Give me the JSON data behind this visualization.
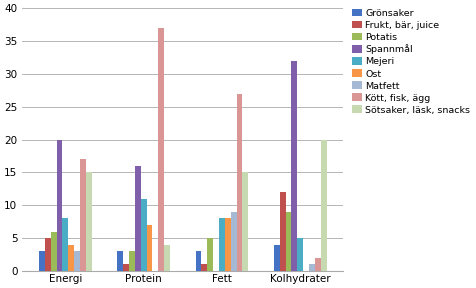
{
  "categories": [
    "Energi",
    "Protein",
    "Fett",
    "Kolhydrater"
  ],
  "series": [
    {
      "name": "Grönsaker",
      "color": "#4472c4",
      "values": [
        3,
        3,
        3,
        4
      ]
    },
    {
      "name": "Frukt, bär, juice",
      "color": "#c0504d",
      "values": [
        5,
        1,
        1,
        12
      ]
    },
    {
      "name": "Potatis",
      "color": "#9bbb59",
      "values": [
        6,
        3,
        5,
        9
      ]
    },
    {
      "name": "Spannmål",
      "color": "#7f5fa9",
      "values": [
        20,
        16,
        0,
        32
      ]
    },
    {
      "name": "Mejeri",
      "color": "#4bacc6",
      "values": [
        8,
        11,
        8,
        5
      ]
    },
    {
      "name": "Ost",
      "color": "#f79646",
      "values": [
        4,
        7,
        8,
        0
      ]
    },
    {
      "name": "Matfett",
      "color": "#a5b8d4",
      "values": [
        3,
        0,
        9,
        1
      ]
    },
    {
      "name": "Kött, fisk, ägg",
      "color": "#d99694",
      "values": [
        17,
        37,
        27,
        2
      ]
    },
    {
      "name": "Sötsaker, läsk, snacks",
      "color": "#c6d9b0",
      "values": [
        15,
        4,
        15,
        20
      ]
    }
  ],
  "ylim": [
    0,
    40
  ],
  "yticks": [
    0,
    5,
    10,
    15,
    20,
    25,
    30,
    35,
    40
  ],
  "background_color": "#ffffff",
  "grid_color": "#aaaaaa",
  "figsize": [
    4.76,
    2.88
  ],
  "dpi": 100
}
